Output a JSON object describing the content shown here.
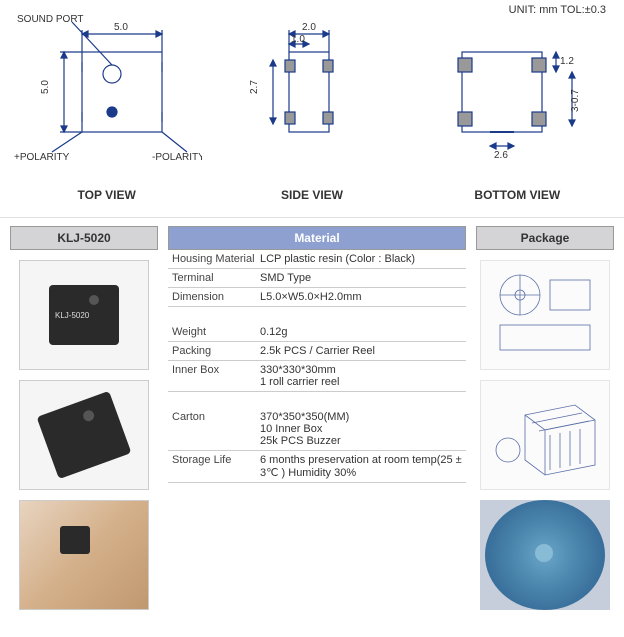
{
  "unit_text": "UNIT: mm   TOL:±0.3",
  "diagrams": {
    "top": {
      "label": "TOP VIEW",
      "sound_port": "SOUND PORT",
      "pos_polarity": "+POLARITY",
      "neg_polarity": "-POLARITY",
      "dim_w": "5.0",
      "dim_h": "5.0"
    },
    "side": {
      "label": "SIDE VIEW",
      "dim_w": "2.0",
      "dim_in": "1.0",
      "dim_h": "2.7"
    },
    "bottom": {
      "label": "BOTTOM VIEW",
      "dim_r": "1.2",
      "dim_pad": "2.6",
      "dim_gap": "3-0.7"
    }
  },
  "headers": {
    "product": "KLJ-5020",
    "material": "Material",
    "package": "Package"
  },
  "chip_label": "KLJ-5020",
  "material_table": [
    {
      "k": "Housing Material",
      "v": [
        "LCP plastic resin (Color : Black)"
      ]
    },
    {
      "k": "Terminal",
      "v": [
        "SMD Type"
      ]
    },
    {
      "k": "Dimension",
      "v": [
        "L5.0×W5.0×H2.0mm"
      ]
    }
  ],
  "weight_table": [
    {
      "k": "Weight",
      "v": [
        "0.12g"
      ]
    },
    {
      "k": "Packing",
      "v": [
        "2.5k PCS / Carrier Reel"
      ]
    },
    {
      "k": "Inner Box",
      "v": [
        "330*330*30mm",
        "1 roll carrier reel"
      ]
    }
  ],
  "carton_table": [
    {
      "k": "Carton",
      "v": [
        "370*350*350(MM)",
        "10 Inner Box",
        "25k PCS Buzzer"
      ]
    },
    {
      "k": "Storage Life",
      "v": [
        "6 months preservation at room temp(25 ± 3℃ ) Humidity 30%"
      ]
    }
  ],
  "colors": {
    "line": "#1b3a8a",
    "hatch": "#555"
  }
}
